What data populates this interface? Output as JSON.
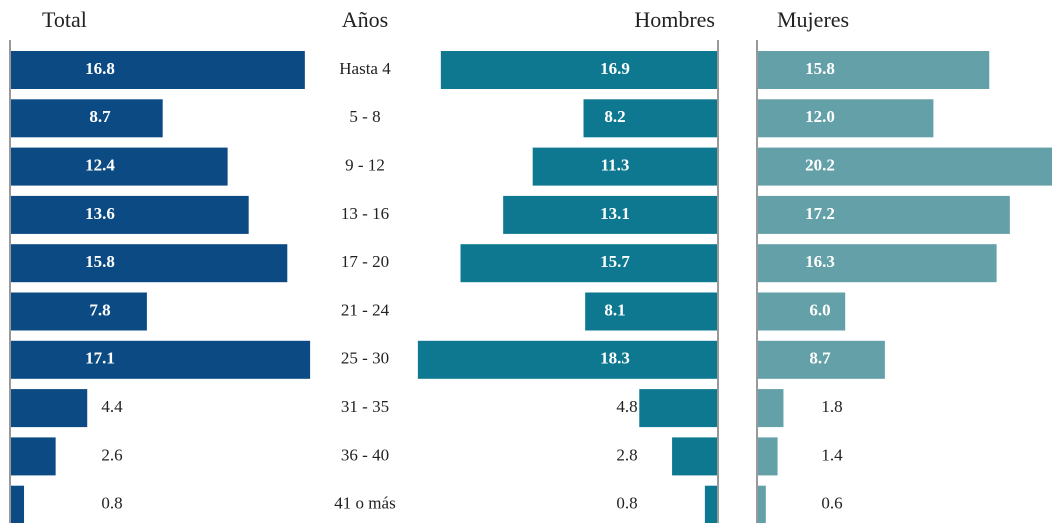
{
  "chart_data": {
    "type": "bar",
    "category_label": "Años",
    "categories": [
      "Hasta 4",
      "5 - 8",
      "9 - 12",
      "13 - 16",
      "17 - 20",
      "21 - 24",
      "25 - 30",
      "31 - 35",
      "36 - 40",
      "41 o más"
    ],
    "xlim": [
      0,
      20
    ],
    "series": [
      {
        "name": "Total",
        "color": "#0b4a82",
        "values": [
          16.8,
          8.7,
          12.4,
          13.6,
          15.8,
          7.8,
          17.1,
          4.4,
          2.6,
          0.8
        ],
        "value_labels": [
          "16.8",
          "8.7",
          "12.4",
          "13.6",
          "15.8",
          "7.8",
          "17.1",
          "4.4",
          "2.6",
          "0.8"
        ]
      },
      {
        "name": "Hombres",
        "color": "#0e7890",
        "values": [
          16.9,
          8.2,
          11.3,
          13.1,
          15.7,
          8.1,
          18.3,
          4.8,
          2.8,
          0.8
        ],
        "value_labels": [
          "16.9",
          "8.2",
          "11.3",
          "13.1",
          "15.7",
          "8.1",
          "18.3",
          "4.8",
          "2.8",
          "0.8"
        ]
      },
      {
        "name": "Mujeres",
        "color": "#63a0a7",
        "values": [
          15.8,
          12.0,
          20.2,
          17.2,
          16.3,
          6.0,
          8.7,
          1.8,
          1.4,
          0.6
        ],
        "value_labels": [
          "15.8",
          "12.0",
          "20.2",
          "17.2",
          "16.3",
          "6.0",
          "8.7",
          "1.8",
          "1.4",
          "0.6"
        ]
      }
    ]
  }
}
